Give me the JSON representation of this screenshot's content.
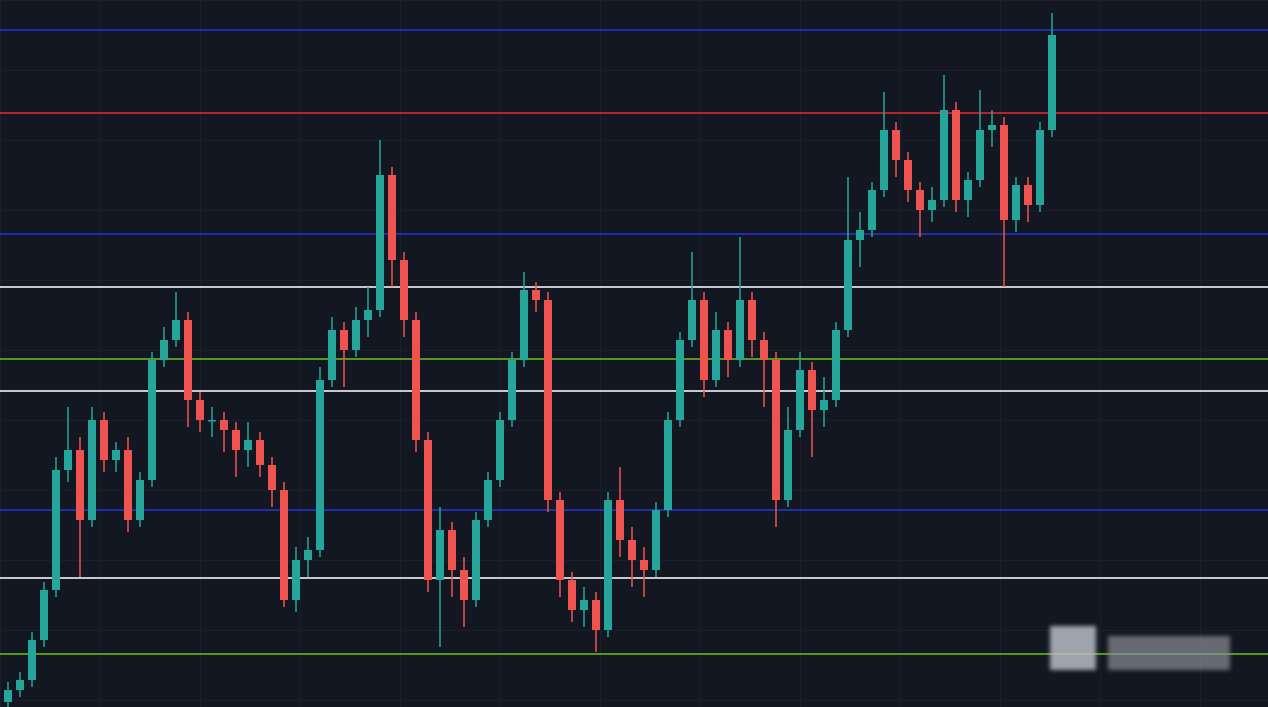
{
  "chart_data": {
    "type": "candlestick",
    "ylim": [
      0,
      707
    ],
    "up_color": "#26a69a",
    "down_color": "#ef5350",
    "levels": [
      {
        "value": 677,
        "color": "#1f2fa8"
      },
      {
        "value": 594,
        "color": "#b3242c"
      },
      {
        "value": 473,
        "color": "#1f2fa8"
      },
      {
        "value": 420,
        "color": "#c8c8cc"
      },
      {
        "value": 348,
        "color": "#4f9a1f"
      },
      {
        "value": 316,
        "color": "#c8c8cc"
      },
      {
        "value": 197,
        "color": "#1f2fa8"
      },
      {
        "value": 129,
        "color": "#c8c8cc"
      },
      {
        "value": 53,
        "color": "#4f9a1f"
      }
    ],
    "open": [
      5,
      17,
      27,
      67,
      117,
      237,
      257,
      187,
      287,
      247,
      257,
      187,
      227,
      347,
      367,
      387,
      307,
      287,
      287,
      277,
      257,
      267,
      242,
      217,
      107,
      147,
      157,
      327,
      377,
      357,
      387,
      397,
      532,
      447,
      387,
      267,
      127,
      177,
      137,
      107,
      187,
      227,
      287,
      347,
      417,
      407,
      207,
      127,
      97,
      107,
      77,
      207,
      167,
      147,
      137,
      197,
      287,
      367,
      407,
      327,
      377,
      347,
      407,
      367,
      347,
      207,
      277,
      337,
      297,
      307,
      377,
      467,
      477,
      517,
      577,
      547,
      517,
      497,
      507,
      597,
      507,
      527,
      577,
      582,
      487,
      522,
      502,
      577
    ],
    "high": [
      25,
      35,
      75,
      125,
      250,
      300,
      270,
      300,
      295,
      265,
      270,
      235,
      355,
      380,
      415,
      395,
      315,
      300,
      295,
      285,
      285,
      275,
      250,
      225,
      160,
      170,
      340,
      390,
      385,
      400,
      420,
      567,
      540,
      455,
      395,
      275,
      200,
      185,
      150,
      195,
      235,
      295,
      355,
      435,
      425,
      415,
      215,
      135,
      120,
      115,
      215,
      240,
      180,
      160,
      205,
      295,
      375,
      455,
      415,
      395,
      385,
      470,
      415,
      375,
      355,
      300,
      355,
      345,
      330,
      385,
      530,
      495,
      525,
      615,
      585,
      555,
      525,
      520,
      632,
      605,
      535,
      617,
      597,
      590,
      530,
      530,
      585,
      694
    ],
    "low": [
      0,
      10,
      20,
      60,
      110,
      225,
      130,
      180,
      235,
      235,
      175,
      180,
      220,
      340,
      360,
      280,
      275,
      270,
      255,
      230,
      240,
      230,
      200,
      100,
      95,
      130,
      150,
      320,
      320,
      350,
      370,
      390,
      420,
      370,
      255,
      115,
      60,
      110,
      80,
      100,
      180,
      220,
      280,
      340,
      395,
      195,
      110,
      85,
      80,
      55,
      70,
      150,
      120,
      110,
      130,
      190,
      280,
      360,
      310,
      320,
      330,
      340,
      350,
      300,
      180,
      200,
      270,
      250,
      280,
      300,
      370,
      440,
      470,
      510,
      530,
      505,
      470,
      485,
      500,
      495,
      490,
      520,
      560,
      420,
      475,
      485,
      495,
      570
    ],
    "close": [
      17,
      27,
      67,
      117,
      237,
      257,
      187,
      287,
      247,
      257,
      187,
      227,
      347,
      367,
      387,
      307,
      287,
      287,
      277,
      257,
      267,
      242,
      217,
      107,
      147,
      157,
      327,
      377,
      357,
      387,
      397,
      532,
      447,
      387,
      267,
      127,
      177,
      137,
      107,
      187,
      227,
      287,
      347,
      417,
      407,
      207,
      127,
      97,
      107,
      77,
      207,
      167,
      147,
      137,
      197,
      287,
      367,
      407,
      327,
      377,
      347,
      407,
      367,
      347,
      207,
      277,
      337,
      297,
      307,
      377,
      467,
      477,
      517,
      577,
      547,
      517,
      497,
      507,
      597,
      507,
      527,
      577,
      582,
      487,
      522,
      502,
      577,
      672
    ]
  }
}
